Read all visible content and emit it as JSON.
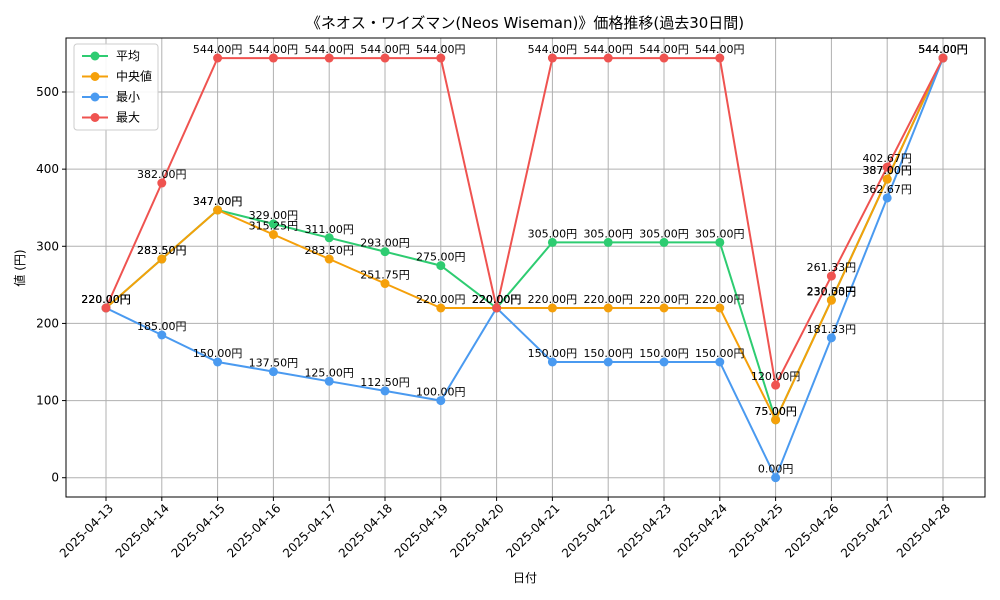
{
  "chart_data": {
    "type": "line",
    "title": "《ネオス・ワイズマン(Neos Wiseman)》価格推移(過去30日間)",
    "xlabel": "日付",
    "ylabel": "値 (円)",
    "ylim": [
      -25,
      570
    ],
    "yticks": [
      0,
      100,
      200,
      300,
      400,
      500
    ],
    "grid": true,
    "legend_position": "top-left",
    "value_suffix": "円",
    "categories": [
      "2025-04-13",
      "2025-04-14",
      "2025-04-15",
      "2025-04-16",
      "2025-04-17",
      "2025-04-18",
      "2025-04-19",
      "2025-04-20",
      "2025-04-21",
      "2025-04-22",
      "2025-04-23",
      "2025-04-24",
      "2025-04-25",
      "2025-04-26",
      "2025-04-27",
      "2025-04-28"
    ],
    "series": [
      {
        "name": "平均",
        "color": "#2ecc71",
        "values": [
          220.0,
          283.5,
          347.0,
          329.0,
          311.0,
          293.0,
          275.0,
          220.0,
          305.0,
          305.0,
          305.0,
          305.0,
          75.0,
          230.33,
          387.0,
          544.0
        ]
      },
      {
        "name": "中央値",
        "color": "#f5a00a",
        "values": [
          220.0,
          283.5,
          347.0,
          315.25,
          283.5,
          251.75,
          220.0,
          220.0,
          220.0,
          220.0,
          220.0,
          220.0,
          75.0,
          230.0,
          387.0,
          544.0
        ]
      },
      {
        "name": "最小",
        "color": "#4a9af0",
        "values": [
          220.0,
          185.0,
          150.0,
          137.5,
          125.0,
          112.5,
          100.0,
          220.0,
          150.0,
          150.0,
          150.0,
          150.0,
          0.0,
          181.33,
          362.67,
          544.0
        ]
      },
      {
        "name": "最大",
        "color": "#ef5350",
        "values": [
          220.0,
          382.0,
          544.0,
          544.0,
          544.0,
          544.0,
          544.0,
          220.0,
          544.0,
          544.0,
          544.0,
          544.0,
          120.0,
          261.33,
          402.67,
          544.0
        ]
      }
    ]
  }
}
